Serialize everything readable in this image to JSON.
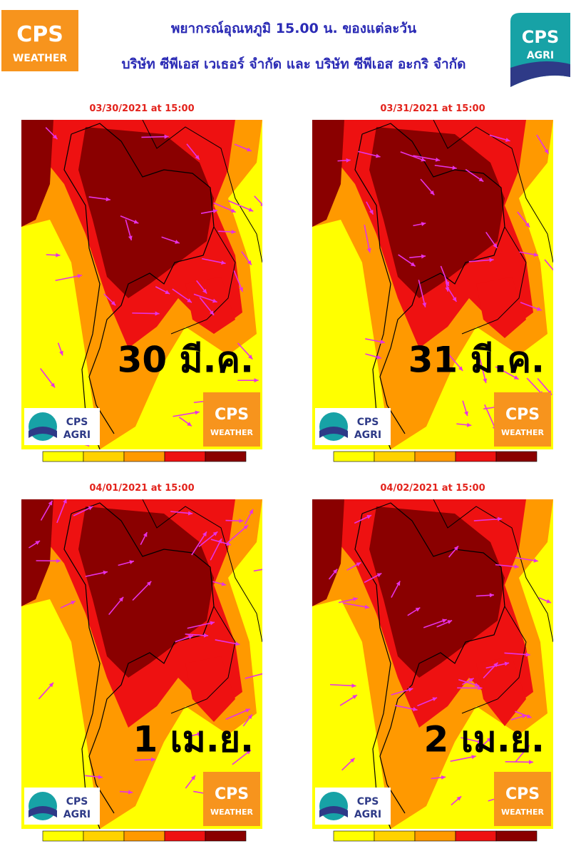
{
  "header": {
    "title": "พยากรณ์อุณหภูมิ 15.00 น. ของแต่ละวัน",
    "subtitle": "บริษัท ซีพีเอส เวเธอร์ จำกัด และ บริษัท ซีพีเอส อะกริ จำกัด"
  },
  "logos": {
    "weather": {
      "name": "CPS",
      "sub": "WEATHER"
    },
    "agri": {
      "name": "CPS",
      "sub": "AGRI"
    }
  },
  "colorbar": [
    "#ffff00",
    "#ffd200",
    "#ff9900",
    "#ee1111",
    "#8a0000"
  ],
  "panels": [
    {
      "date": "03/30/2021 at 15:00",
      "label": "30 มี.ค."
    },
    {
      "date": "03/31/2021 at 15:00",
      "label": "31 มี.ค."
    },
    {
      "date": "04/01/2021 at 15:00",
      "label": "1 เม.ย."
    },
    {
      "date": "04/02/2021 at 15:00",
      "label": "2 เม.ย."
    }
  ]
}
